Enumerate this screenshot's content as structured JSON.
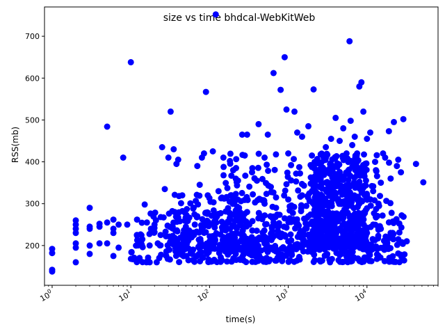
{
  "chart_data": {
    "type": "scatter",
    "title": "size vs time bhdcal-WebKitWeb",
    "xlabel": "time(s)",
    "ylabel": "RSS(mb)",
    "xscale": "log",
    "xlim": [
      0.8,
      80000
    ],
    "ylim": [
      105,
      770
    ],
    "x_ticks": [
      {
        "value": 1,
        "base": "10",
        "exp": "0"
      },
      {
        "value": 10,
        "base": "10",
        "exp": "1"
      },
      {
        "value": 100,
        "base": "10",
        "exp": "2"
      },
      {
        "value": 1000,
        "base": "10",
        "exp": "3"
      },
      {
        "value": 10000,
        "base": "10",
        "exp": "4"
      }
    ],
    "y_ticks": [
      "200",
      "300",
      "400",
      "500",
      "600",
      "700"
    ],
    "marker_color": "#0000ff",
    "grid": false,
    "series": [
      {
        "name": "runs",
        "points": [
          [
            1,
            138
          ],
          [
            1,
            142
          ],
          [
            1,
            182
          ],
          [
            1,
            192
          ],
          [
            2,
            160
          ],
          [
            2,
            195
          ],
          [
            2,
            205
          ],
          [
            2,
            230
          ],
          [
            2,
            240
          ],
          [
            2,
            250
          ],
          [
            2,
            260
          ],
          [
            3,
            180
          ],
          [
            3,
            200
          ],
          [
            3,
            240
          ],
          [
            3,
            245
          ],
          [
            3,
            290
          ],
          [
            4,
            205
          ],
          [
            4,
            245
          ],
          [
            4,
            252
          ],
          [
            5,
            205
          ],
          [
            5,
            255
          ],
          [
            5,
            484
          ],
          [
            6,
            175
          ],
          [
            6,
            230
          ],
          [
            6,
            240
          ],
          [
            6,
            262
          ],
          [
            7,
            195
          ],
          [
            7,
            250
          ],
          [
            8,
            410
          ],
          [
            9,
            250
          ],
          [
            10,
            638
          ],
          [
            12,
            225
          ],
          [
            12,
            262
          ],
          [
            14,
            215
          ],
          [
            15,
            298
          ],
          [
            18,
            240
          ],
          [
            20,
            250
          ],
          [
            22,
            205
          ],
          [
            25,
            435
          ],
          [
            27,
            335
          ],
          [
            30,
            410
          ],
          [
            32,
            520
          ],
          [
            35,
            430
          ],
          [
            38,
            395
          ],
          [
            40,
            405
          ],
          [
            40,
            185
          ],
          [
            45,
            320
          ],
          [
            50,
            245
          ],
          [
            60,
            225
          ],
          [
            70,
            390
          ],
          [
            75,
            345
          ],
          [
            80,
            410
          ],
          [
            85,
            420
          ],
          [
            90,
            567
          ],
          [
            95,
            320
          ],
          [
            110,
            425
          ],
          [
            120,
            752
          ],
          [
            130,
            330
          ],
          [
            150,
            410
          ],
          [
            180,
            305
          ],
          [
            200,
            380
          ],
          [
            230,
            355
          ],
          [
            260,
            465
          ],
          [
            280,
            415
          ],
          [
            300,
            465
          ],
          [
            350,
            385
          ],
          [
            400,
            355
          ],
          [
            420,
            490
          ],
          [
            500,
            410
          ],
          [
            550,
            465
          ],
          [
            600,
            340
          ],
          [
            650,
            612
          ],
          [
            700,
            315
          ],
          [
            800,
            572
          ],
          [
            900,
            650
          ],
          [
            950,
            525
          ],
          [
            1000,
            420
          ],
          [
            1200,
            520
          ],
          [
            1300,
            470
          ],
          [
            1500,
            460
          ],
          [
            1800,
            485
          ],
          [
            2000,
            415
          ],
          [
            2100,
            573
          ],
          [
            2500,
            395
          ],
          [
            3000,
            435
          ],
          [
            3500,
            455
          ],
          [
            4000,
            505
          ],
          [
            4500,
            450
          ],
          [
            5000,
            480
          ],
          [
            5500,
            420
          ],
          [
            6000,
            688
          ],
          [
            6200,
            498
          ],
          [
            6500,
            440
          ],
          [
            7000,
            460
          ],
          [
            7500,
            420
          ],
          [
            8000,
            580
          ],
          [
            8500,
            590
          ],
          [
            9000,
            520
          ],
          [
            10000,
            455
          ],
          [
            11000,
            470
          ],
          [
            12000,
            330
          ],
          [
            13000,
            380
          ],
          [
            15000,
            350
          ],
          [
            16000,
            420
          ],
          [
            17000,
            410
          ],
          [
            19000,
            473
          ],
          [
            20000,
            360
          ],
          [
            22000,
            495
          ],
          [
            24000,
            390
          ],
          [
            25000,
            405
          ],
          [
            27000,
            375
          ],
          [
            29000,
            502
          ],
          [
            32000,
            210
          ],
          [
            42000,
            395
          ],
          [
            52000,
            351
          ],
          [
            60,
            180
          ],
          [
            80,
            200
          ],
          [
            100,
            210
          ],
          [
            150,
            220
          ],
          [
            200,
            200
          ],
          [
            250,
            190
          ],
          [
            300,
            210
          ],
          [
            400,
            215
          ],
          [
            500,
            205
          ],
          [
            600,
            195
          ],
          [
            800,
            220
          ],
          [
            1000,
            210
          ],
          [
            1500,
            200
          ],
          [
            2000,
            215
          ],
          [
            2500,
            190
          ],
          [
            3000,
            200
          ],
          [
            4000,
            210
          ],
          [
            5000,
            220
          ],
          [
            6000,
            180
          ],
          [
            7000,
            200
          ],
          [
            8000,
            210
          ],
          [
            10000,
            230
          ],
          [
            12000,
            250
          ],
          [
            15000,
            240
          ],
          [
            18000,
            200
          ],
          [
            20000,
            230
          ],
          [
            25000,
            215
          ],
          [
            300,
            280
          ],
          [
            500,
            300
          ],
          [
            700,
            290
          ],
          [
            1000,
            310
          ],
          [
            1500,
            320
          ],
          [
            2000,
            330
          ],
          [
            2500,
            340
          ],
          [
            3000,
            350
          ],
          [
            4000,
            360
          ],
          [
            5000,
            330
          ],
          [
            6000,
            340
          ],
          [
            8000,
            310
          ],
          [
            10000,
            320
          ],
          [
            14000,
            300
          ],
          [
            70,
            270
          ],
          [
            90,
            255
          ],
          [
            120,
            265
          ],
          [
            160,
            245
          ],
          [
            220,
            260
          ],
          [
            320,
            250
          ],
          [
            450,
            270
          ],
          [
            650,
            255
          ],
          [
            900,
            265
          ],
          [
            1300,
            250
          ],
          [
            1800,
            270
          ],
          [
            2600,
            255
          ],
          [
            3600,
            265
          ],
          [
            5200,
            250
          ],
          [
            7200,
            260
          ],
          [
            16,
            255
          ],
          [
            20,
            232
          ],
          [
            24,
            268
          ],
          [
            28,
            222
          ],
          [
            34,
            245
          ],
          [
            42,
            258
          ],
          [
            48,
            212
          ],
          [
            55,
            236
          ],
          [
            65,
            250
          ]
        ]
      }
    ],
    "bands": [
      {
        "xmin": 10,
        "xmax": 30000,
        "ymin": 160,
        "ymax": 280,
        "count": 450,
        "seed": 11
      },
      {
        "xmin": 150,
        "xmax": 20000,
        "ymin": 190,
        "ymax": 420,
        "count": 300,
        "seed": 23
      },
      {
        "xmin": 2000,
        "xmax": 10000,
        "ymin": 200,
        "ymax": 420,
        "count": 420,
        "seed": 37
      },
      {
        "xmin": 30,
        "xmax": 300,
        "ymin": 190,
        "ymax": 330,
        "count": 160,
        "seed": 53
      }
    ]
  }
}
